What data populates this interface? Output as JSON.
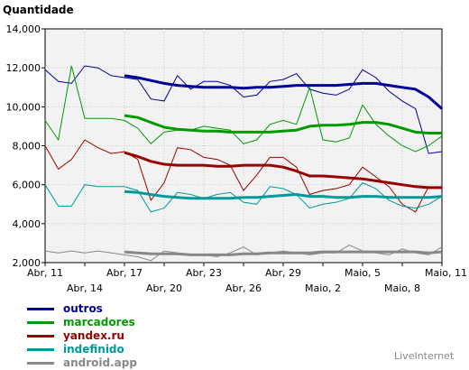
{
  "chart_data": {
    "type": "line",
    "ylabel": "Quantidade",
    "ylim": [
      2000,
      14000
    ],
    "yticks": [
      2000,
      4000,
      6000,
      8000,
      10000,
      12000,
      14000
    ],
    "ytick_labels": [
      "2,000",
      "4,000",
      "6,000",
      "8,000",
      "10,000",
      "12,000",
      "14,000"
    ],
    "x_start": 0,
    "x_end": 30,
    "xticks": [
      {
        "x": 0,
        "label": "Abr, 11",
        "row": 0
      },
      {
        "x": 3,
        "label": "Abr, 14",
        "row": 1
      },
      {
        "x": 6,
        "label": "Abr, 17",
        "row": 0
      },
      {
        "x": 9,
        "label": "Abr, 20",
        "row": 1
      },
      {
        "x": 12,
        "label": "Abr, 23",
        "row": 0
      },
      {
        "x": 15,
        "label": "Abr, 26",
        "row": 1
      },
      {
        "x": 18,
        "label": "Abr, 29",
        "row": 0
      },
      {
        "x": 21,
        "label": "Maio, 2",
        "row": 1
      },
      {
        "x": 24,
        "label": "Maio, 5",
        "row": 0
      },
      {
        "x": 27,
        "label": "Maio, 8",
        "row": 1
      },
      {
        "x": 30,
        "label": "Maio, 11",
        "row": 0
      }
    ],
    "series": [
      {
        "name": "outros",
        "color": "#000099",
        "daily": [
          11900,
          11300,
          11200,
          12100,
          12000,
          11600,
          11500,
          11400,
          10400,
          10300,
          11600,
          10900,
          11300,
          11300,
          11100,
          10500,
          10600,
          11300,
          11400,
          11700,
          10900,
          10700,
          10600,
          10900,
          11900,
          11500,
          10800,
          10300,
          9900,
          7600,
          7700
        ],
        "trend": [
          null,
          null,
          null,
          null,
          null,
          null,
          11600,
          11500,
          11350,
          11200,
          11100,
          11050,
          11000,
          11000,
          11000,
          10950,
          11000,
          11000,
          11050,
          11100,
          11100,
          11100,
          11100,
          11150,
          11200,
          11200,
          11100,
          11000,
          10900,
          10500,
          9900
        ]
      },
      {
        "name": "marcadores",
        "color": "#009900",
        "daily": [
          9300,
          8300,
          12100,
          9400,
          9400,
          9400,
          9300,
          8900,
          8100,
          8700,
          8800,
          8800,
          9000,
          8900,
          8800,
          8100,
          8300,
          9100,
          9300,
          9100,
          11000,
          8300,
          8200,
          8400,
          10100,
          9100,
          8500,
          8000,
          7700,
          8000,
          8500
        ],
        "trend": [
          null,
          null,
          null,
          null,
          null,
          null,
          9550,
          9450,
          9200,
          8950,
          8850,
          8800,
          8750,
          8750,
          8700,
          8700,
          8700,
          8700,
          8750,
          8800,
          9000,
          9050,
          9050,
          9100,
          9200,
          9200,
          9100,
          8900,
          8700,
          8650,
          8650
        ]
      },
      {
        "name": "yandex.ru",
        "color": "#990000",
        "daily": [
          8000,
          6800,
          7300,
          8300,
          7900,
          7600,
          7700,
          7300,
          5200,
          6100,
          7900,
          7800,
          7400,
          7300,
          7000,
          5700,
          6500,
          7400,
          7400,
          6900,
          5500,
          5700,
          5800,
          6000,
          6900,
          6400,
          5900,
          5000,
          4600,
          5900,
          5800
        ],
        "trend": [
          null,
          null,
          null,
          null,
          null,
          null,
          7650,
          7450,
          7200,
          7050,
          7000,
          7000,
          7000,
          6950,
          6950,
          7000,
          7000,
          7000,
          6900,
          6700,
          6450,
          6450,
          6400,
          6350,
          6300,
          6200,
          6100,
          6000,
          5900,
          5850,
          5850
        ]
      },
      {
        "name": "indefinido",
        "color": "#009999",
        "daily": [
          6000,
          4900,
          4900,
          6000,
          5900,
          5900,
          5900,
          5700,
          4600,
          4800,
          5600,
          5500,
          5300,
          5500,
          5600,
          5100,
          5000,
          5900,
          5800,
          5500,
          4800,
          5000,
          5100,
          5300,
          6100,
          5800,
          5200,
          4900,
          4800,
          5000,
          5400
        ],
        "trend": [
          null,
          null,
          null,
          null,
          null,
          null,
          5650,
          5600,
          5500,
          5400,
          5350,
          5300,
          5300,
          5300,
          5300,
          5350,
          5350,
          5400,
          5450,
          5500,
          5400,
          5400,
          5350,
          5350,
          5400,
          5400,
          5350,
          5350,
          5350,
          5350,
          5400
        ]
      },
      {
        "name": "android.app",
        "color": "#888888",
        "daily": [
          2600,
          2500,
          2600,
          2500,
          2600,
          2500,
          2400,
          2300,
          2100,
          2600,
          2500,
          2400,
          2400,
          2300,
          2500,
          2800,
          2400,
          2500,
          2600,
          2500,
          2400,
          2500,
          2500,
          2900,
          2600,
          2500,
          2400,
          2700,
          2500,
          2400,
          2800
        ],
        "trend": [
          null,
          null,
          null,
          null,
          null,
          null,
          2550,
          2500,
          2450,
          2450,
          2450,
          2400,
          2400,
          2400,
          2400,
          2450,
          2450,
          2500,
          2500,
          2500,
          2500,
          2550,
          2550,
          2550,
          2550,
          2550,
          2550,
          2550,
          2550,
          2500,
          2550
        ]
      }
    ]
  },
  "watermark": "LiveInternet"
}
